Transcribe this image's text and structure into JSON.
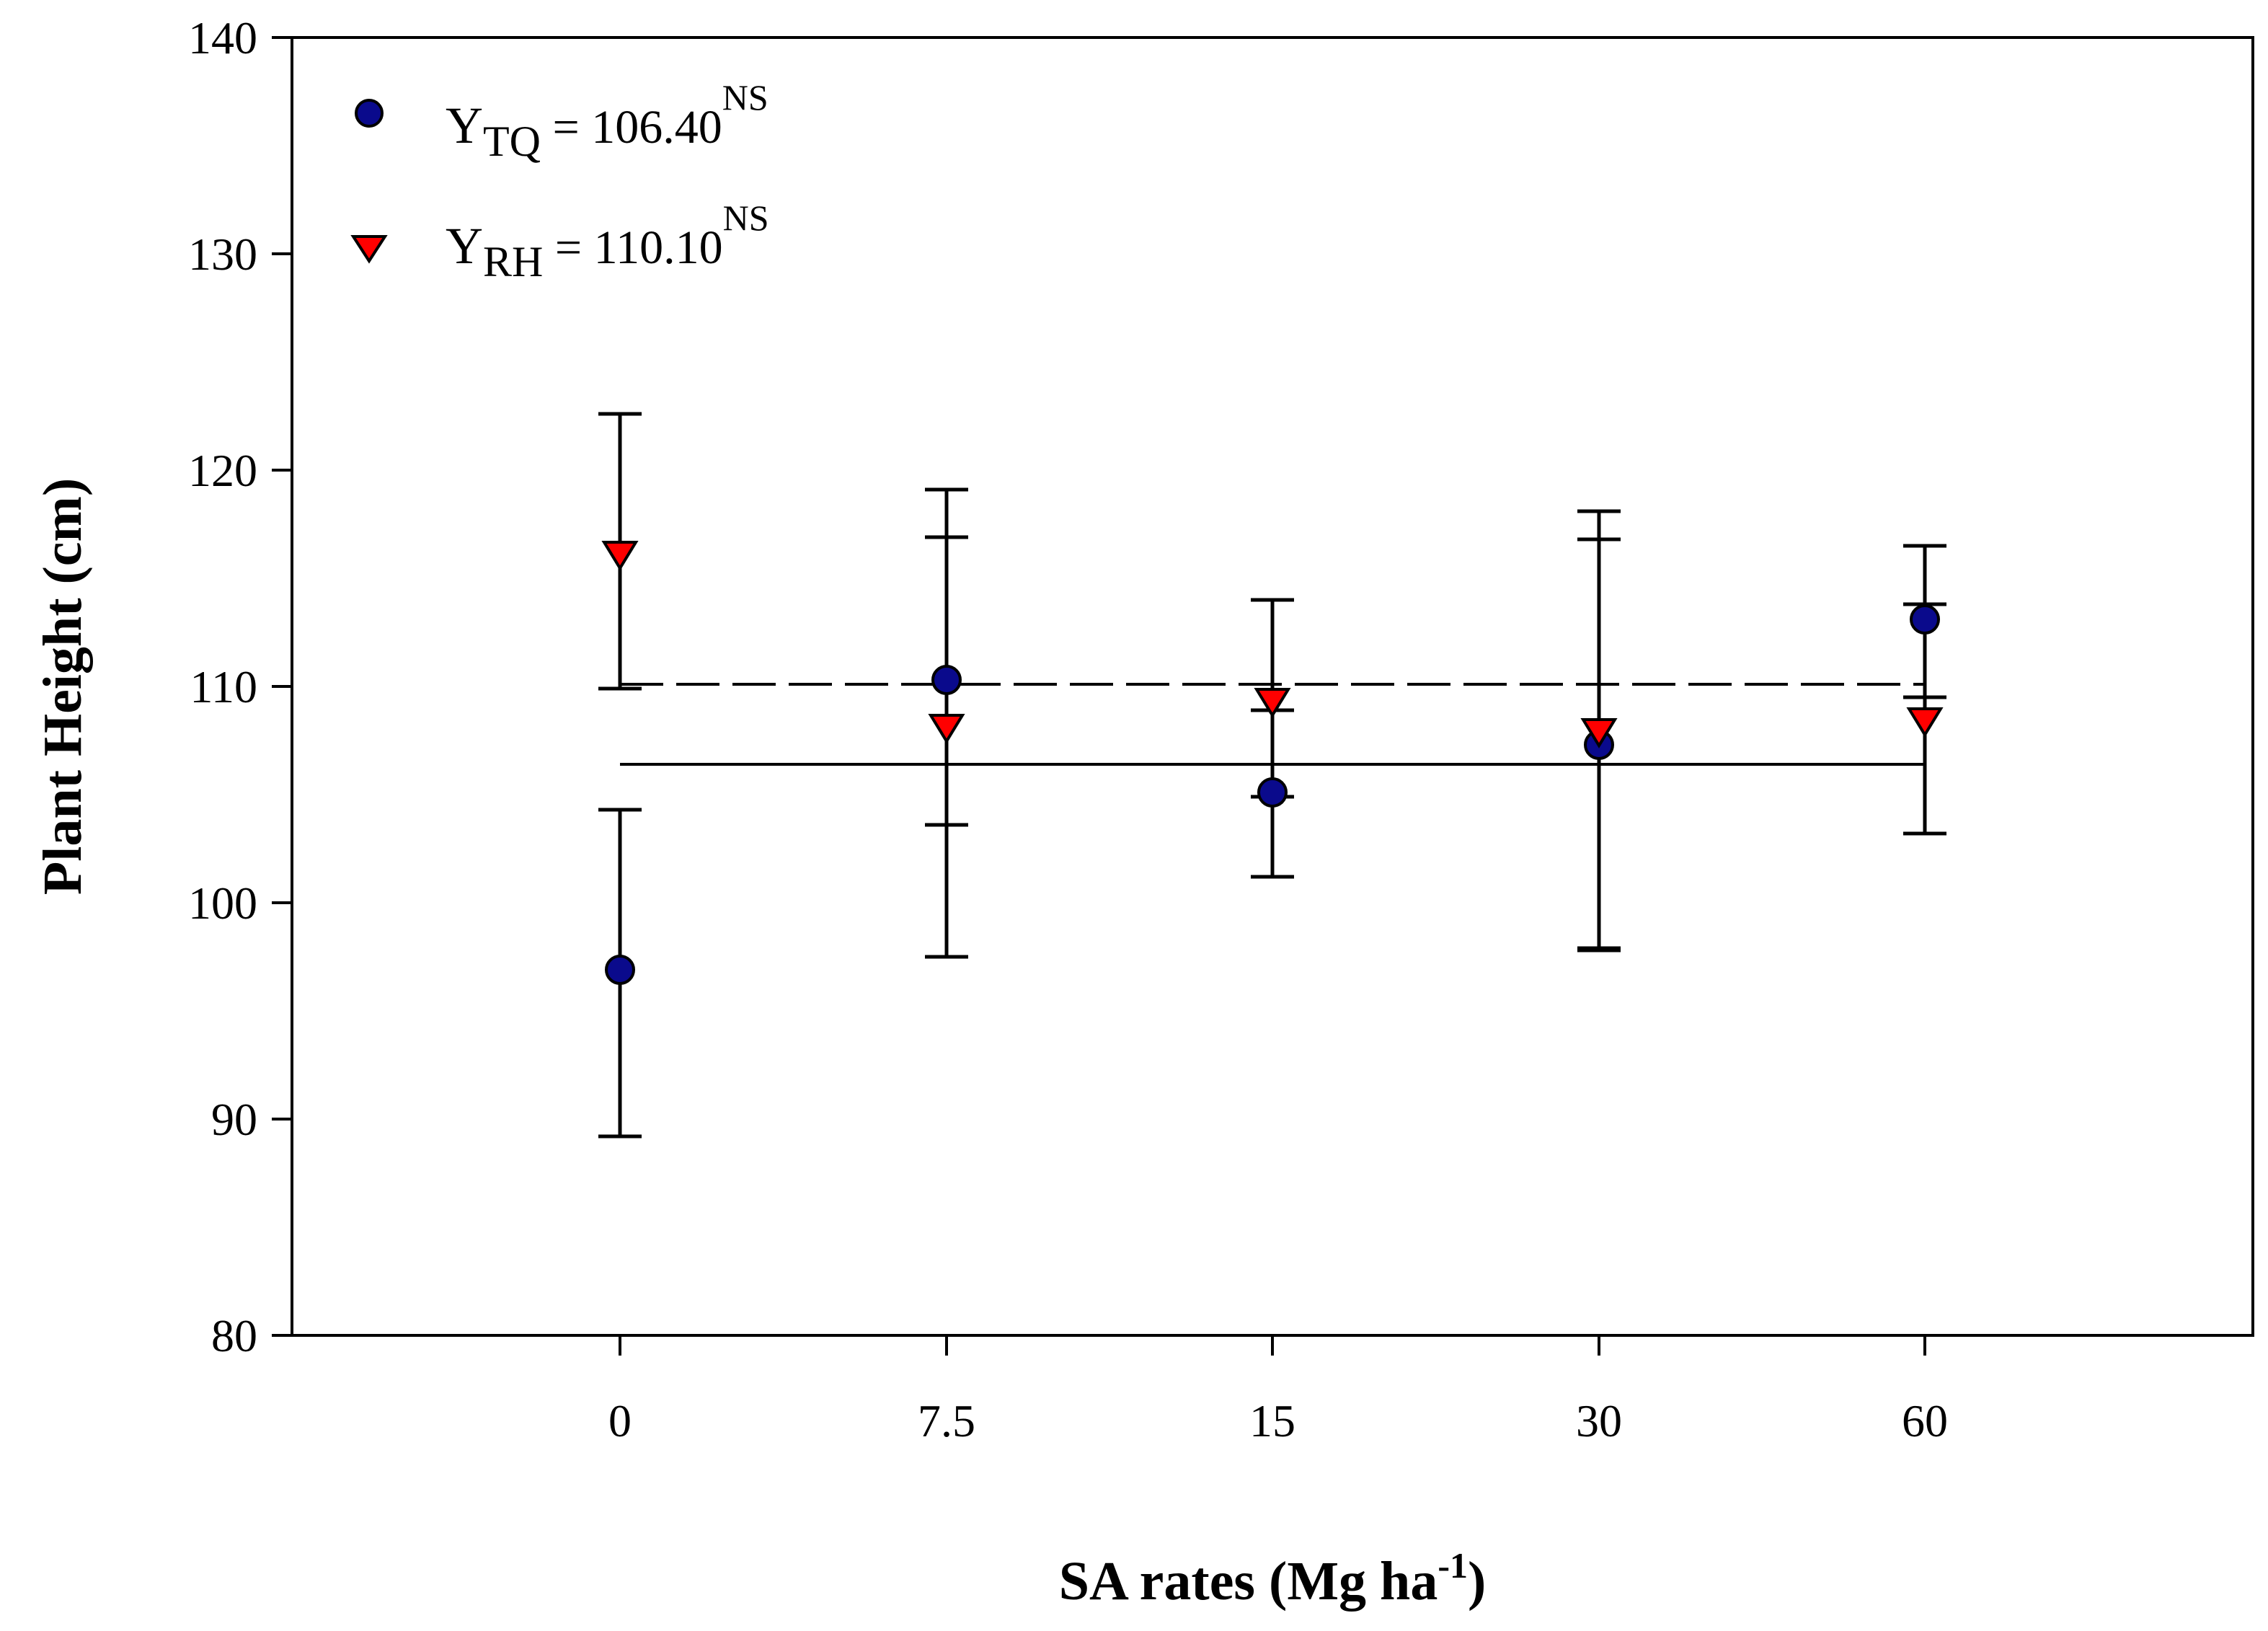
{
  "chart_data": {
    "type": "scatter",
    "xlabel": "SA rates (Mg ha",
    "xlabel_sup": "-1",
    "xlabel_close": ")",
    "ylabel": "Plant Height (cm)",
    "categories": [
      "0",
      "7.5",
      "15",
      "30",
      "60"
    ],
    "ylim": [
      80,
      140
    ],
    "yticks": [
      80,
      90,
      100,
      110,
      120,
      130,
      140
    ],
    "grid": false,
    "legend_position": "top-left",
    "series": [
      {
        "key": "TQ",
        "marker": "circle",
        "color": "#0a0a8c",
        "values": [
          96.9,
          110.3,
          105.1,
          107.3,
          113.1
        ],
        "err_low": [
          89.2,
          103.6,
          101.2,
          97.8,
          109.5
        ],
        "err_high": [
          104.3,
          116.9,
          108.9,
          116.8,
          116.5
        ],
        "fit": 106.4,
        "fit_style": "solid",
        "legend": {
          "y": "Y",
          "sub": "TQ",
          "eq": " = 106.40",
          "sup": "NS"
        }
      },
      {
        "key": "RH",
        "marker": "triangle-down",
        "color": "#ff0000",
        "values": [
          116.1,
          108.1,
          109.3,
          107.9,
          108.4
        ],
        "err_low": [
          109.9,
          97.5,
          104.9,
          97.9,
          103.2
        ],
        "err_high": [
          122.6,
          119.1,
          114.0,
          118.1,
          113.8
        ],
        "fit": 110.1,
        "fit_style": "dashed",
        "legend": {
          "y": "Y",
          "sub": "RH",
          "eq": " = 110.10",
          "sup": "NS"
        }
      }
    ]
  }
}
